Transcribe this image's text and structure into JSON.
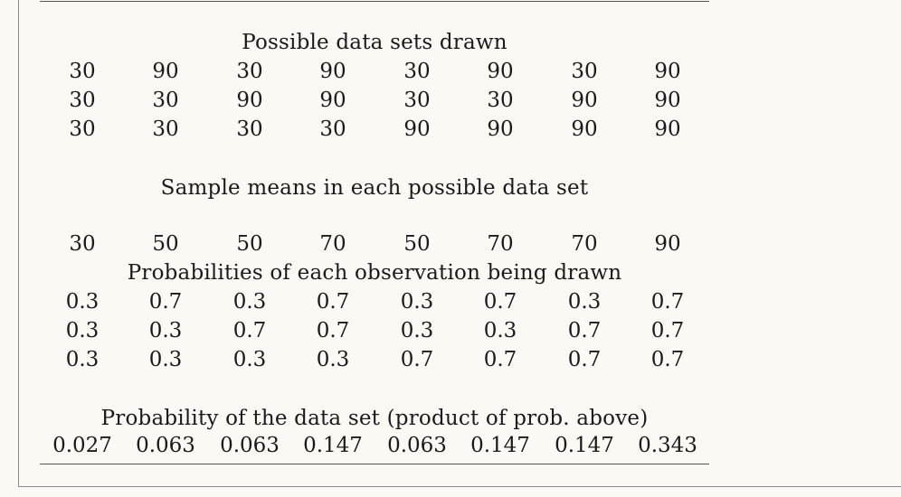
{
  "captions": {
    "data_sets": "Possible data sets drawn",
    "means": "Sample means in each possible data set",
    "obs_prob": "Probabilities of each observation being drawn",
    "set_prob": "Probability of the data set (product of prob. above)"
  },
  "data_sets": [
    [
      "30",
      "90",
      "30",
      "90",
      "30",
      "90",
      "30",
      "90"
    ],
    [
      "30",
      "30",
      "90",
      "90",
      "30",
      "30",
      "90",
      "90"
    ],
    [
      "30",
      "30",
      "30",
      "30",
      "90",
      "90",
      "90",
      "90"
    ]
  ],
  "means": [
    "30",
    "50",
    "50",
    "70",
    "50",
    "70",
    "70",
    "90"
  ],
  "obs_prob": [
    [
      "0.3",
      "0.7",
      "0.3",
      "0.7",
      "0.3",
      "0.7",
      "0.3",
      "0.7"
    ],
    [
      "0.3",
      "0.3",
      "0.7",
      "0.7",
      "0.3",
      "0.3",
      "0.7",
      "0.7"
    ],
    [
      "0.3",
      "0.3",
      "0.3",
      "0.3",
      "0.7",
      "0.7",
      "0.7",
      "0.7"
    ]
  ],
  "set_prob": [
    "0.027",
    "0.063",
    "0.063",
    "0.147",
    "0.063",
    "0.147",
    "0.147",
    "0.343"
  ]
}
